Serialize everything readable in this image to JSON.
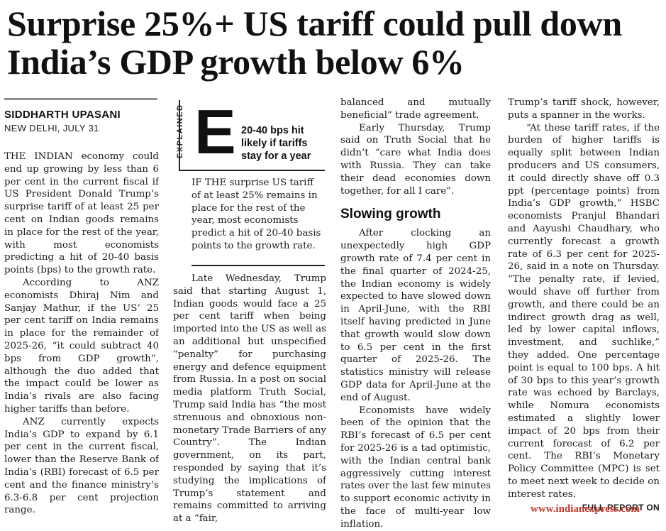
{
  "headline": "Surprise 25%+ US tariff could pull down India’s GDP growth below 6%",
  "byline": {
    "author": "SIDDHARTH UPASANI",
    "dateline": "NEW DELHI, JULY 31"
  },
  "explained": {
    "label": "EXPLAINED",
    "letter": "E",
    "heading": "20-40 bps hit likely if tariffs stay for a year",
    "summary": "IF THE surprise US tariff of at least 25% remains in place for the rest of the year, most economists predict a hit of 20-40 basis points to the growth rate."
  },
  "column1": {
    "paragraphs": [
      "THE INDIAN economy could end up growing by less than 6 per cent in the current fiscal if US President Donald Trump’s surprise tariff of at least 25 per cent on Indian goods remains in place for the rest of the year, with most economists predicting a hit of 20-40 basis points (bps) to the growth rate.",
      "According to ANZ economists Dhiraj Nim and Sanjay Mathur, if the US’ 25 per cent tariff on India remains in place for the remainder of 2025-26, “it could subtract 40 bps from GDP growth”, although the duo added that the impact could be lower as India’s rivals are also facing higher tariffs than before.",
      "ANZ currently expects India’s GDP to expand by 6.1 per cent in the current fiscal, lower than the Reserve Bank of India’s (RBI) forecast of 6.5 per cent and the finance ministry’s 6.3-6.8 per cent projection range."
    ]
  },
  "column2": {
    "paragraphs": [
      "Late Wednesday, Trump said that starting August 1, Indian goods would face a 25 per cent tariff when being imported into the US as well as an additional but unspecified “penalty” for purchasing energy and defence equipment from Russia. In a post on social media platform Truth Social, Trump said India has “the most strenuous and obnoxious non-monetary Trade Barriers of any Country”. The Indian government, on its part, responded by saying that it’s studying the implications of Trump’s statement and remains committed to arriving at a “fair,"
    ]
  },
  "column3": {
    "lead": "balanced and mutually beneficial” trade agreement.",
    "paragraphs": [
      "Early Thursday, Trump said on Truth Social that he didn’t “care what India does with Russia. They can take their dead economies down together, for all I care”."
    ],
    "subhead": "Slowing growth",
    "paragraphs_after": [
      "After clocking an unexpectedly high GDP growth rate of 7.4 per cent in the final quarter of 2024-25, the Indian economy is widely expected to have slowed down in April-June, with the RBI itself having predicted in June that growth would slow down to 6.5 per cent in the first quarter of 2025-26. The statistics ministry will release GDP data for April-June at the end of August.",
      "Economists have widely been of the opinion that the RBI’s forecast of 6.5 per cent for 2025-26 is a tad optimistic, with the Indian central bank aggressively cutting interest rates over the last few minutes to support economic activity in the face of multi-year low inflation."
    ]
  },
  "column4": {
    "lead": "Trump’s tariff shock, however, puts a spanner in the works.",
    "paragraphs": [
      "“At these tariff rates, if the burden of higher tariffs is equally split between Indian producers and US consumers, it could directly shave off 0.3 ppt (percentage points) from India’s GDP growth,” HSBC economists Pranjul Bhandari and Aayushi Chaudhary, who currently forecast a growth rate of 6.3 per cent for 2025-26, said in a note on Thursday. “The penalty rate, if levied, would shave off further from growth, and there could be an indirect growth drag as well, led by lower capital inflows, investment, and suchlike,” they added. One percentage point is equal to 100 bps. A hit of 30 bps to this year’s growth rate was echoed by Barclays, while Nomura economists estimated a slightly lower impact of 20 bps from their current forecast of 6.2 per cent. The RBI’s Monetary Policy Committee (MPC) is set to meet next week to decide on interest rates."
    ],
    "report_tag": "FULL REPORT ON"
  },
  "footer": {
    "url": "www.indianexpress.com"
  }
}
